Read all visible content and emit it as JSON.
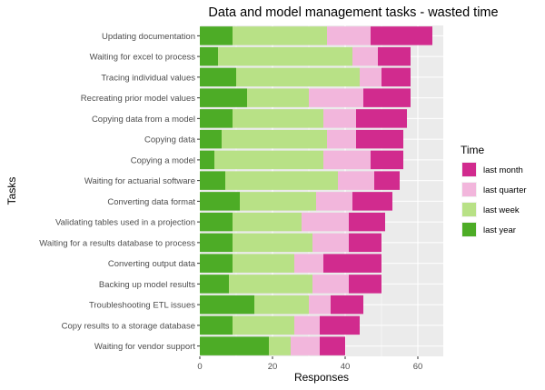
{
  "chart_data": {
    "type": "bar",
    "orientation": "horizontal",
    "stacked": true,
    "title": "Data and model management tasks - wasted time",
    "xlabel": "Responses",
    "ylabel": "Tasks",
    "xlim": [
      0,
      67
    ],
    "xticks": [
      0,
      20,
      40,
      60
    ],
    "grid": true,
    "legend": {
      "title": "Time",
      "position": "right",
      "entries": [
        {
          "name": "last month",
          "color": "#d12b8e"
        },
        {
          "name": "last quarter",
          "color": "#f2b6dc"
        },
        {
          "name": "last week",
          "color": "#b8e186"
        },
        {
          "name": "last year",
          "color": "#4dac26"
        }
      ]
    },
    "categories": [
      "Updating documentation",
      "Waiting for excel to process",
      "Tracing individual values",
      "Recreating prior model values",
      "Copying data from a model",
      "Copying data",
      "Copying a model",
      "Waiting for actuarial software",
      "Converting data format",
      "Validating tables used in a projection",
      "Waiting for a results database to process",
      "Converting output data",
      "Backing up model results",
      "Troubleshooting ETL issues",
      "Copy results to a storage database",
      "Waiting for vendor support"
    ],
    "series": [
      {
        "name": "last year",
        "color": "#4dac26",
        "values": [
          9,
          5,
          10,
          13,
          9,
          6,
          4,
          7,
          11,
          9,
          9,
          9,
          8,
          15,
          9,
          19
        ]
      },
      {
        "name": "last week",
        "color": "#b8e186",
        "values": [
          26,
          37,
          34,
          17,
          25,
          29,
          30,
          31,
          21,
          19,
          22,
          17,
          23,
          15,
          17,
          6
        ]
      },
      {
        "name": "last quarter",
        "color": "#f2b6dc",
        "values": [
          12,
          7,
          6,
          15,
          9,
          8,
          13,
          10,
          10,
          13,
          10,
          8,
          10,
          6,
          7,
          8
        ]
      },
      {
        "name": "last month",
        "color": "#d12b8e",
        "values": [
          17,
          9,
          8,
          13,
          14,
          13,
          9,
          7,
          11,
          10,
          9,
          16,
          9,
          9,
          11,
          7
        ]
      }
    ]
  }
}
